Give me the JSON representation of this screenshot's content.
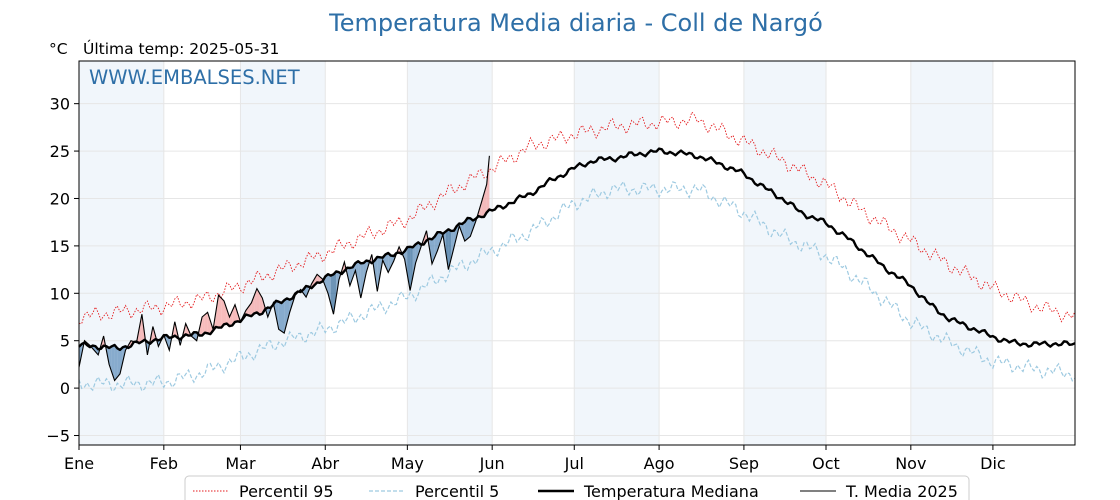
{
  "page": {
    "title": "Temperatura Media diaria - Coll de Nargó",
    "unit": "°C",
    "last_temp_label": "Última temp: 2025-05-31",
    "watermark": "WWW.EMBALSES.NET"
  },
  "colors": {
    "p95": "#e41a1c",
    "p5": "#9ecae1",
    "median": "#000000",
    "current": "#000000",
    "above_fill": "#f4a6a6",
    "below_fill": "#4f82b3",
    "below_fill_dark": "#1f5b8f",
    "band": "#f1f6fb",
    "grid": "#e6e6e6",
    "title": "#2e6fa7"
  },
  "chart_data": {
    "type": "line",
    "title": "Temperatura Media diaria - Coll de Nargó",
    "ylabel": "°C",
    "ylim": [
      -6,
      34.5
    ],
    "xlim": [
      1,
      365
    ],
    "grid": true,
    "legend_position": "bottom-center",
    "x_ticks": [
      {
        "label": "Ene",
        "day": 1
      },
      {
        "label": "Feb",
        "day": 32
      },
      {
        "label": "Mar",
        "day": 60
      },
      {
        "label": "Abr",
        "day": 91
      },
      {
        "label": "May",
        "day": 121
      },
      {
        "label": "Jun",
        "day": 152
      },
      {
        "label": "Jul",
        "day": 182
      },
      {
        "label": "Ago",
        "day": 213
      },
      {
        "label": "Sep",
        "day": 244
      },
      {
        "label": "Oct",
        "day": 274
      },
      {
        "label": "Nov",
        "day": 305
      },
      {
        "label": "Dic",
        "day": 335
      }
    ],
    "y_ticks": [
      -5,
      0,
      5,
      10,
      15,
      20,
      25,
      30
    ],
    "shaded_months": [
      [
        1,
        31
      ],
      [
        60,
        90
      ],
      [
        121,
        151
      ],
      [
        182,
        212
      ],
      [
        244,
        273
      ],
      [
        305,
        334
      ]
    ],
    "series": [
      {
        "name": "Percentil 95",
        "key": "p95",
        "style": "dotted-red",
        "x": [
          1,
          15,
          32,
          46,
          60,
          74,
          91,
          105,
          121,
          135,
          152,
          166,
          182,
          196,
          213,
          227,
          244,
          258,
          274,
          288,
          305,
          319,
          335,
          350,
          365
        ],
        "y": [
          7.5,
          8,
          8.6,
          9.4,
          10.8,
          12.4,
          14.2,
          16,
          17.8,
          20.5,
          23.2,
          25.5,
          26.8,
          27.6,
          28,
          28.3,
          26,
          24,
          21.5,
          18.5,
          15.5,
          13,
          10.5,
          8.7,
          7.5
        ]
      },
      {
        "name": "Percentil 5",
        "key": "p5",
        "style": "dashed-lightblue",
        "x": [
          1,
          15,
          32,
          46,
          60,
          74,
          91,
          105,
          121,
          135,
          152,
          166,
          182,
          196,
          213,
          227,
          244,
          258,
          274,
          288,
          305,
          319,
          335,
          350,
          365
        ],
        "y": [
          0.5,
          0.4,
          0.6,
          1.6,
          3.2,
          4.8,
          6.2,
          7.8,
          9.6,
          12,
          14.5,
          16.5,
          19.5,
          21,
          21,
          21,
          18.5,
          16,
          14,
          11,
          7,
          4.8,
          2.8,
          2,
          1.5
        ]
      },
      {
        "name": "Temperatura Mediana",
        "key": "median",
        "style": "thick-black",
        "x": [
          1,
          8,
          15,
          22,
          32,
          39,
          46,
          53,
          60,
          67,
          74,
          81,
          91,
          98,
          105,
          112,
          121,
          128,
          135,
          142,
          152,
          159,
          166,
          173,
          182,
          189,
          196,
          203,
          213,
          220,
          227,
          234,
          244,
          251,
          258,
          265,
          274,
          281,
          288,
          295,
          305,
          312,
          319,
          326,
          335,
          342,
          350,
          357,
          365
        ],
        "y": [
          4.5,
          4.4,
          4.2,
          4.7,
          5.3,
          5.5,
          5.7,
          6.4,
          7.2,
          8,
          9,
          10,
          11.6,
          12.5,
          13.3,
          13.8,
          14.6,
          15.6,
          16.5,
          17.5,
          18.7,
          19.6,
          20.5,
          21.8,
          23.2,
          24,
          24.2,
          24.6,
          25,
          24.8,
          24.5,
          23.8,
          22.6,
          21.2,
          20,
          18.5,
          17.4,
          16,
          14.4,
          12.8,
          10.8,
          8.8,
          7.3,
          6.5,
          5.4,
          4.8,
          4.6,
          4.7,
          4.6
        ]
      },
      {
        "name": "T. Media 2025",
        "key": "current",
        "style": "thin-black",
        "x": [
          1,
          3,
          5,
          8,
          10,
          12,
          14,
          16,
          18,
          20,
          22,
          24,
          26,
          28,
          30,
          32,
          34,
          36,
          38,
          40,
          42,
          44,
          46,
          48,
          50,
          52,
          54,
          56,
          58,
          60,
          62,
          64,
          66,
          68,
          70,
          72,
          74,
          76,
          78,
          80,
          82,
          84,
          86,
          88,
          90,
          92,
          94,
          96,
          98,
          100,
          102,
          104,
          106,
          108,
          110,
          112,
          114,
          116,
          118,
          120,
          122,
          124,
          126,
          128,
          130,
          132,
          134,
          136,
          138,
          140,
          142,
          144,
          146,
          148,
          150,
          151
        ],
        "y": [
          2.2,
          5,
          4.5,
          3.5,
          5.5,
          2.5,
          0.8,
          1.5,
          4,
          5,
          4.8,
          7.8,
          3.5,
          6.5,
          4.4,
          5.6,
          4,
          7,
          4.5,
          6.8,
          5.5,
          5,
          7.5,
          8,
          6.2,
          9.8,
          9.2,
          7.5,
          8.8,
          7,
          8.2,
          9,
          10.5,
          9.5,
          7.5,
          9,
          6.2,
          5.8,
          8,
          9.8,
          10.4,
          9.6,
          11,
          12,
          11.5,
          10,
          7.8,
          11.4,
          13.3,
          10.8,
          12.4,
          9.5,
          12.2,
          14.1,
          10.2,
          13.5,
          12.2,
          13.4,
          14.9,
          13.6,
          10.3,
          13.2,
          14.9,
          16.6,
          13.1,
          14.5,
          16.2,
          12.5,
          14.8,
          17.1,
          15.5,
          16,
          17.6,
          19.5,
          21.5,
          24.5
        ]
      }
    ]
  },
  "legend": {
    "items": [
      {
        "label": "Percentil 95",
        "style": "dotted-red"
      },
      {
        "label": "Percentil 5",
        "style": "dashed-lightblue"
      },
      {
        "label": "Temperatura Mediana",
        "style": "thick-black"
      },
      {
        "label": "T. Media 2025",
        "style": "thin-black"
      }
    ]
  }
}
